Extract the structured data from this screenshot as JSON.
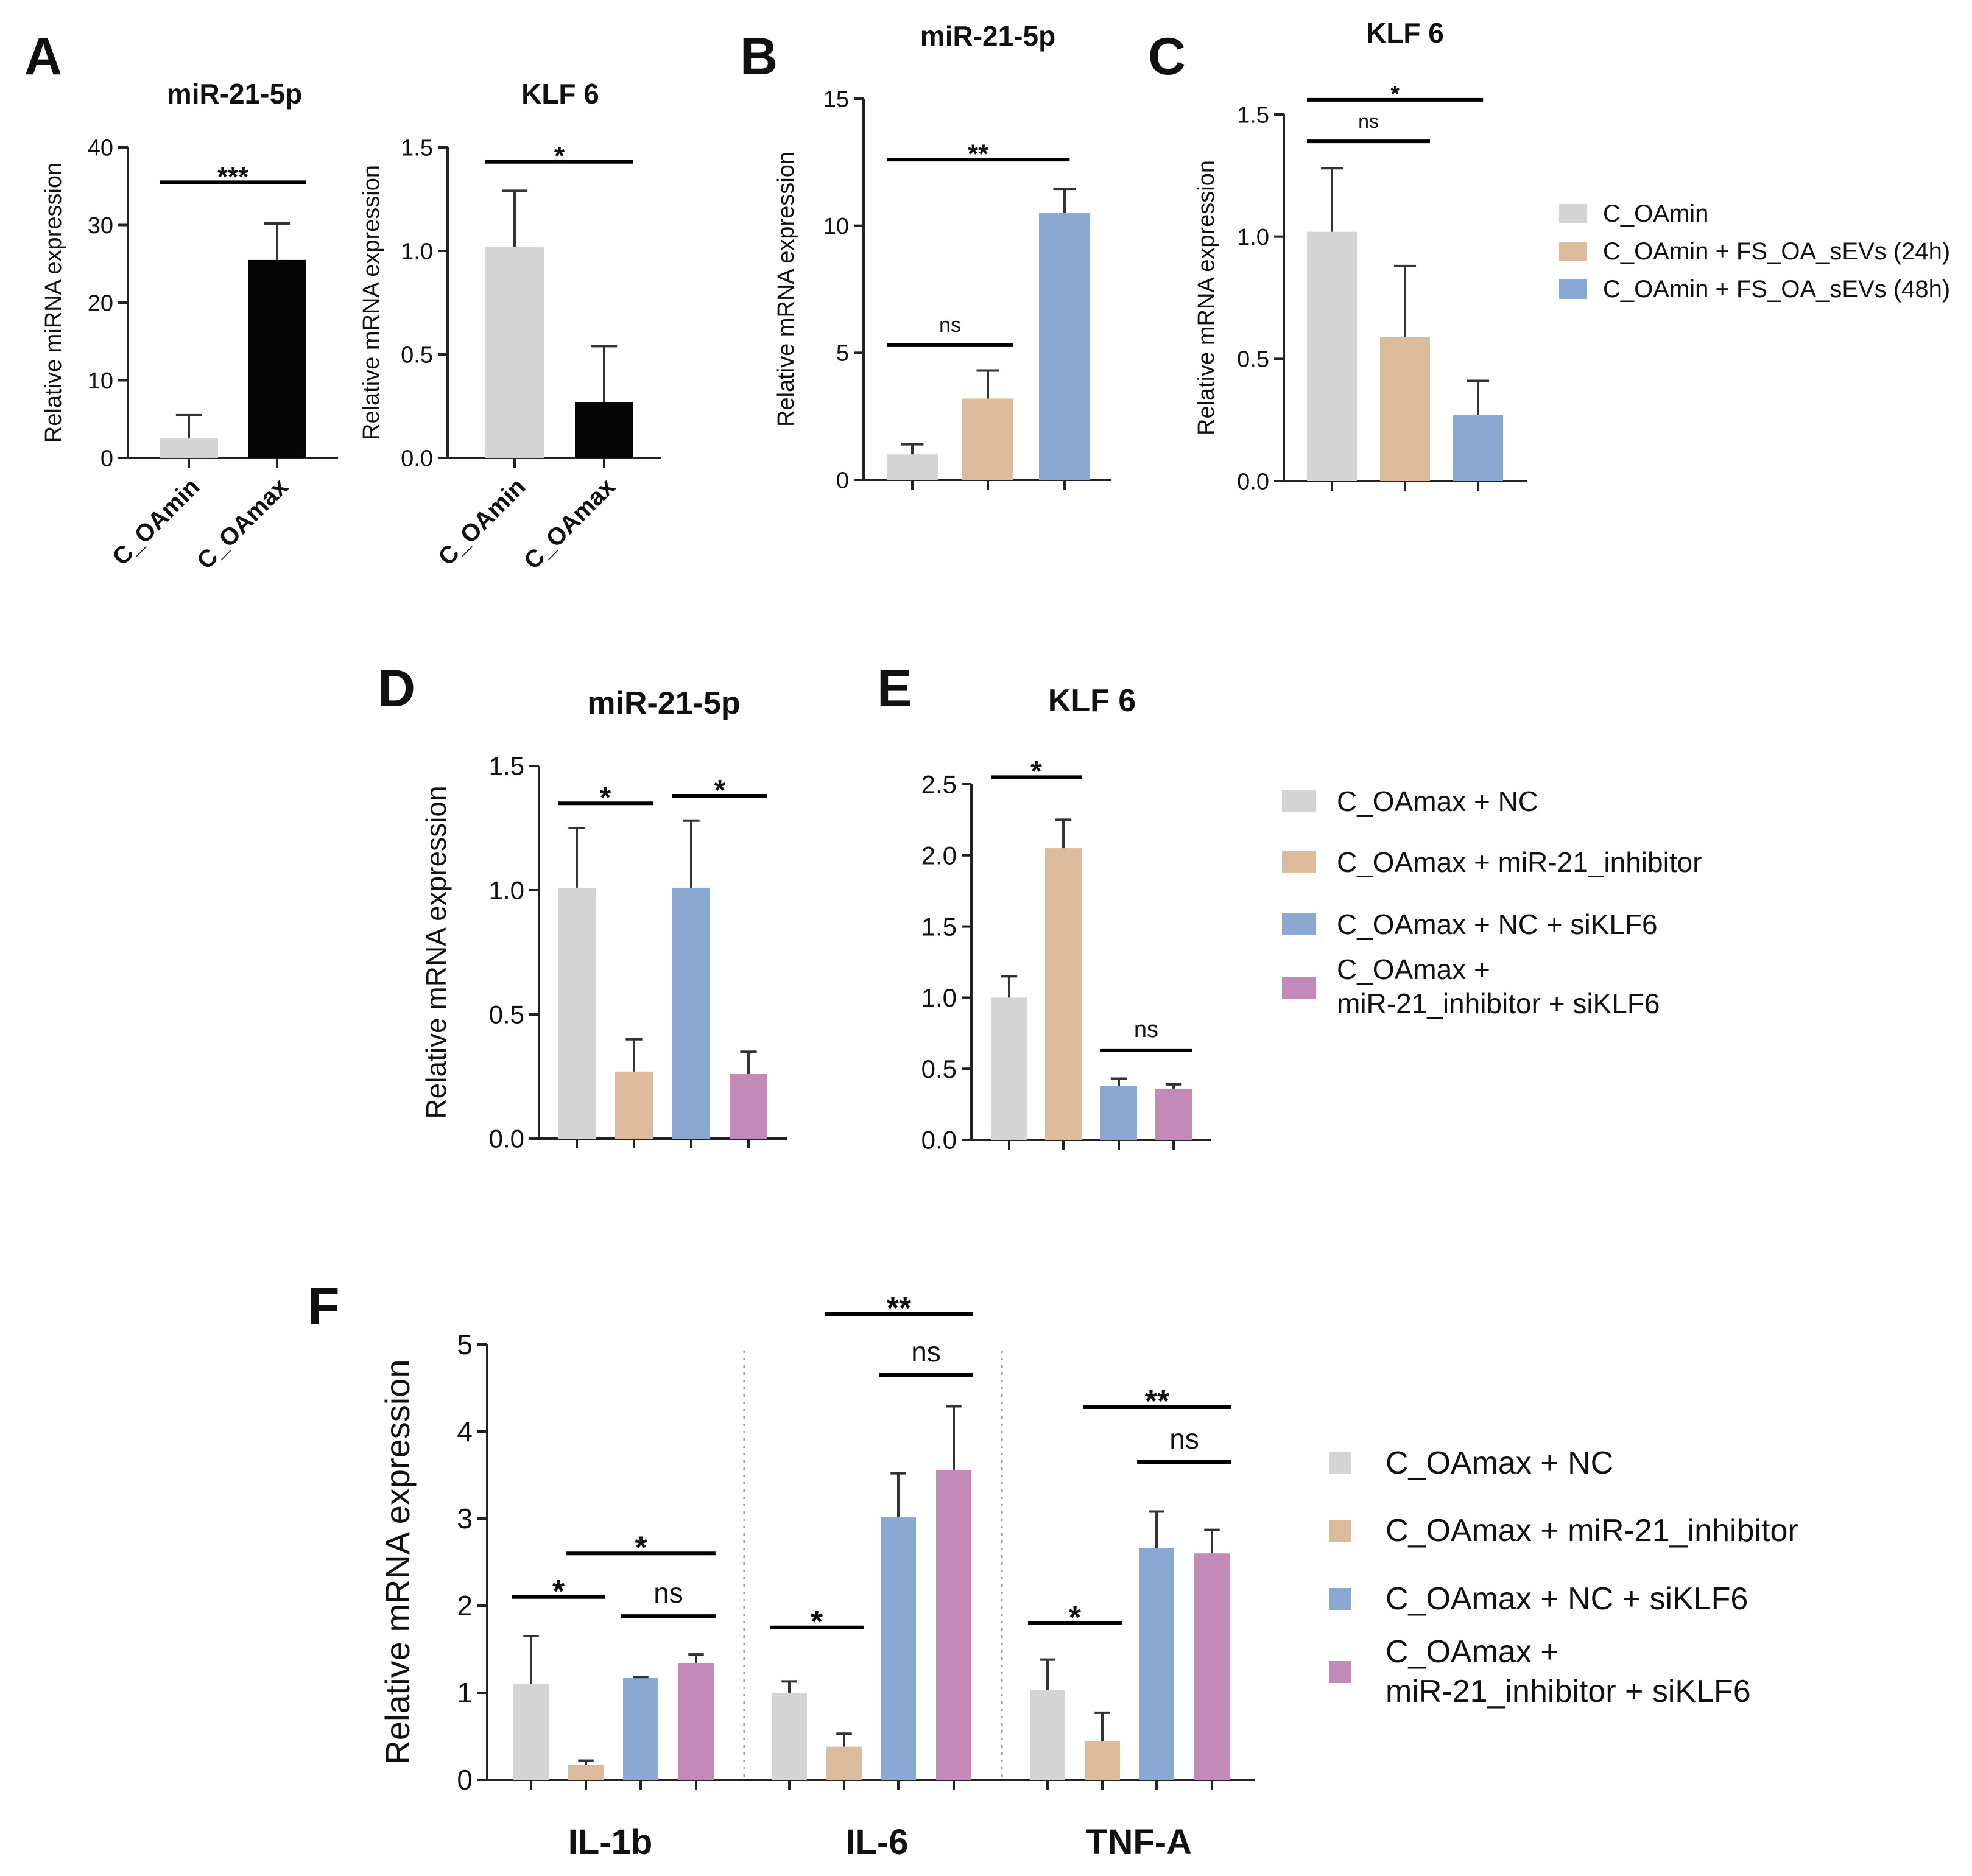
{
  "colors": {
    "gray": "#d4d4d4",
    "black": "#050505",
    "tan": "#ddbb9d",
    "blue": "#8ba8d2",
    "pink": "#c289b9"
  },
  "panel_labels": [
    "A",
    "B",
    "C",
    "D",
    "E",
    "F"
  ],
  "legends": {
    "bc": [
      "C_OAmin",
      "C_OAmin + FS_OA_sEVs (24h)",
      "C_OAmin + FS_OA_sEVs (48h)"
    ],
    "de": [
      "C_OAmax + NC",
      "C_OAmax + miR-21_inhibitor",
      "C_OAmax + NC + siKLF6",
      "C_OAmax +",
      "miR-21_inhibitor + siKLF6"
    ],
    "f": [
      "C_OAmax + NC",
      "C_OAmax + miR-21_inhibitor",
      "C_OAmax + NC + siKLF6",
      "C_OAmax +",
      "miR-21_inhibitor + siKLF6"
    ]
  },
  "chart_data": [
    {
      "id": "A1",
      "panel": "A",
      "type": "bar",
      "title": "miR-21-5p",
      "ylabel": "Relative miRNA expression",
      "ylim": [
        0,
        40
      ],
      "yticks": [
        "0",
        "10",
        "20",
        "30",
        "40"
      ],
      "categories": [
        "C_OAmin",
        "C_OAmax"
      ],
      "values": [
        2.5,
        25.5
      ],
      "errors": [
        3.0,
        4.7
      ],
      "colors": [
        "gray",
        "black"
      ],
      "significance": [
        {
          "from": 0,
          "to": 1,
          "label": "***",
          "y": 35.5
        }
      ]
    },
    {
      "id": "A2",
      "panel": "A",
      "type": "bar",
      "title": "KLF 6",
      "ylabel": "Relative mRNA expression",
      "ylim": [
        0,
        1.5
      ],
      "yticks": [
        "0.0",
        "0.5",
        "1.0",
        "1.5"
      ],
      "categories": [
        "C_OAmin",
        "C_OAmax"
      ],
      "values": [
        1.02,
        0.27
      ],
      "errors": [
        0.27,
        0.27
      ],
      "colors": [
        "gray",
        "black"
      ],
      "significance": [
        {
          "from": 0,
          "to": 1,
          "label": "*",
          "y": 1.43
        }
      ]
    },
    {
      "id": "B",
      "panel": "B",
      "type": "bar",
      "title": "miR-21-5p",
      "ylabel": "Relative mRNA expression",
      "ylim": [
        0,
        15
      ],
      "yticks": [
        "0",
        "5",
        "10",
        "15"
      ],
      "categories": [
        "C_OAmin",
        "C_OAmin + FS_OA_sEVs (24h)",
        "C_OAmin + FS_OA_sEVs (48h)"
      ],
      "values": [
        1.0,
        3.2,
        10.5
      ],
      "errors": [
        0.4,
        1.1,
        0.95
      ],
      "colors": [
        "gray",
        "tan",
        "blue"
      ],
      "significance": [
        {
          "from": 0,
          "to": 1,
          "label": "ns",
          "y": 5.3
        },
        {
          "from": 0,
          "to": 2,
          "label": "**",
          "y": 12.6
        }
      ]
    },
    {
      "id": "C",
      "panel": "C",
      "type": "bar",
      "title": "KLF 6",
      "ylabel": "Relative mRNA expression",
      "ylim": [
        0,
        1.5
      ],
      "yticks": [
        "0.0",
        "0.5",
        "1.0",
        "1.5"
      ],
      "categories": [
        "C_OAmin",
        "C_OAmin + FS_OA_sEVs (24h)",
        "C_OAmin + FS_OA_sEVs (48h)"
      ],
      "values": [
        1.02,
        0.59,
        0.27
      ],
      "errors": [
        0.26,
        0.29,
        0.14
      ],
      "colors": [
        "gray",
        "tan",
        "blue"
      ],
      "significance": [
        {
          "from": 0,
          "to": 1,
          "label": "ns",
          "y": 1.39
        },
        {
          "from": 0,
          "to": 2,
          "label": "*",
          "y": 1.56
        }
      ]
    },
    {
      "id": "D",
      "panel": "D",
      "type": "bar",
      "title": "miR-21-5p",
      "ylabel": "Relative mRNA expression",
      "ylim": [
        0,
        1.5
      ],
      "yticks": [
        "0.0",
        "0.5",
        "1.0",
        "1.5"
      ],
      "categories": [
        "C_OAmax + NC",
        "C_OAmax + miR-21_inhibitor",
        "C_OAmax + NC + siKLF6",
        "C_OAmax + miR-21_inhibitor + siKLF6"
      ],
      "values": [
        1.01,
        0.27,
        1.01,
        0.26
      ],
      "errors": [
        0.24,
        0.13,
        0.27,
        0.09
      ],
      "colors": [
        "gray",
        "tan",
        "blue",
        "pink"
      ],
      "significance": [
        {
          "from": 0,
          "to": 1,
          "label": "*",
          "y": 1.35
        },
        {
          "from": 2,
          "to": 3,
          "label": "*",
          "y": 1.38
        }
      ]
    },
    {
      "id": "E",
      "panel": "E",
      "type": "bar",
      "title": "KLF 6",
      "ylabel": "",
      "ylim": [
        0,
        2.5
      ],
      "yticks": [
        "0.0",
        "0.5",
        "1.0",
        "1.5",
        "2.0",
        "2.5"
      ],
      "categories": [
        "C_OAmax + NC",
        "C_OAmax + miR-21_inhibitor",
        "C_OAmax + NC + siKLF6",
        "C_OAmax + miR-21_inhibitor + siKLF6"
      ],
      "values": [
        1.0,
        2.05,
        0.38,
        0.36
      ],
      "errors": [
        0.15,
        0.2,
        0.05,
        0.03
      ],
      "colors": [
        "gray",
        "tan",
        "blue",
        "pink"
      ],
      "significance": [
        {
          "from": 0,
          "to": 1,
          "label": "*",
          "y": 2.55
        },
        {
          "from": 2,
          "to": 3,
          "label": "ns",
          "y": 0.63
        }
      ]
    },
    {
      "id": "F",
      "panel": "F",
      "type": "bar",
      "title": "",
      "ylabel": "Relative mRNA expression",
      "ylim": [
        0,
        5
      ],
      "yticks": [
        "0",
        "1",
        "2",
        "3",
        "4",
        "5"
      ],
      "groups": [
        "IL-1b",
        "IL-6",
        "TNF-A"
      ],
      "series": [
        {
          "name": "C_OAmax + NC",
          "color": "gray",
          "values": [
            1.1,
            1.0,
            1.03
          ],
          "errors": [
            0.55,
            0.13,
            0.35
          ]
        },
        {
          "name": "C_OAmax + miR-21_inhibitor",
          "color": "tan",
          "values": [
            0.17,
            0.38,
            0.44
          ],
          "errors": [
            0.05,
            0.15,
            0.33
          ]
        },
        {
          "name": "C_OAmax + NC + siKLF6",
          "color": "blue",
          "values": [
            1.17,
            3.02,
            2.66
          ],
          "errors": [
            0.01,
            0.5,
            0.42
          ]
        },
        {
          "name": "C_OAmax + miR-21_inhibitor + siKLF6",
          "color": "pink",
          "values": [
            1.34,
            3.56,
            2.6
          ],
          "errors": [
            0.1,
            0.73,
            0.27
          ]
        }
      ],
      "significance": [
        {
          "group": 0,
          "from": 0,
          "to": 1,
          "label": "*",
          "y": 2.1
        },
        {
          "group": 0,
          "from": 1,
          "to": 3,
          "label": "*",
          "y": 2.6
        },
        {
          "group": 0,
          "from": 2,
          "to": 3,
          "label": "ns",
          "y": 1.88
        },
        {
          "group": 1,
          "from": 0,
          "to": 1,
          "label": "*",
          "y": 1.75
        },
        {
          "group": 1,
          "from": 1,
          "to": 3,
          "label": "**",
          "y": 5.35
        },
        {
          "group": 1,
          "from": 2,
          "to": 3,
          "label": "ns",
          "y": 4.65
        },
        {
          "group": 2,
          "from": 0,
          "to": 1,
          "label": "*",
          "y": 1.8
        },
        {
          "group": 2,
          "from": 1,
          "to": 3,
          "label": "**",
          "y": 4.28
        },
        {
          "group": 2,
          "from": 2,
          "to": 3,
          "label": "ns",
          "y": 3.65
        }
      ]
    }
  ]
}
